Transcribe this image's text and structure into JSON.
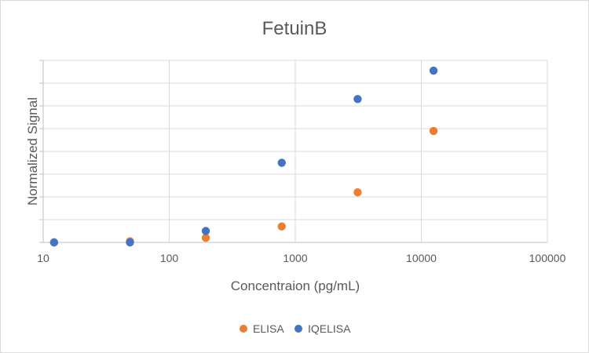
{
  "chart_data": {
    "type": "scatter",
    "title": "FetuinB",
    "xlabel": "Concentraion (pg/mL)",
    "ylabel": "Normalized Signal",
    "xscale": "log",
    "xlim": [
      10,
      100000
    ],
    "xticks": [
      "10",
      "100",
      "1000",
      "10000",
      "100000"
    ],
    "ylim": [
      0,
      8
    ],
    "y_tick_labels_shown": false,
    "grid": true,
    "legend_position": "bottom",
    "series": [
      {
        "name": "ELISA",
        "color": "#ed7d31",
        "points": [
          {
            "x": 12.2,
            "y": 0.0
          },
          {
            "x": 48.8,
            "y": 0.05
          },
          {
            "x": 195,
            "y": 0.2
          },
          {
            "x": 781,
            "y": 0.7
          },
          {
            "x": 3125,
            "y": 2.2
          },
          {
            "x": 12500,
            "y": 4.9
          }
        ]
      },
      {
        "name": "IQELISA",
        "color": "#4472c4",
        "points": [
          {
            "x": 12.2,
            "y": 0.0
          },
          {
            "x": 48.8,
            "y": 0.0
          },
          {
            "x": 195,
            "y": 0.5
          },
          {
            "x": 781,
            "y": 3.5
          },
          {
            "x": 3125,
            "y": 6.3
          },
          {
            "x": 12500,
            "y": 7.55
          }
        ]
      }
    ]
  }
}
